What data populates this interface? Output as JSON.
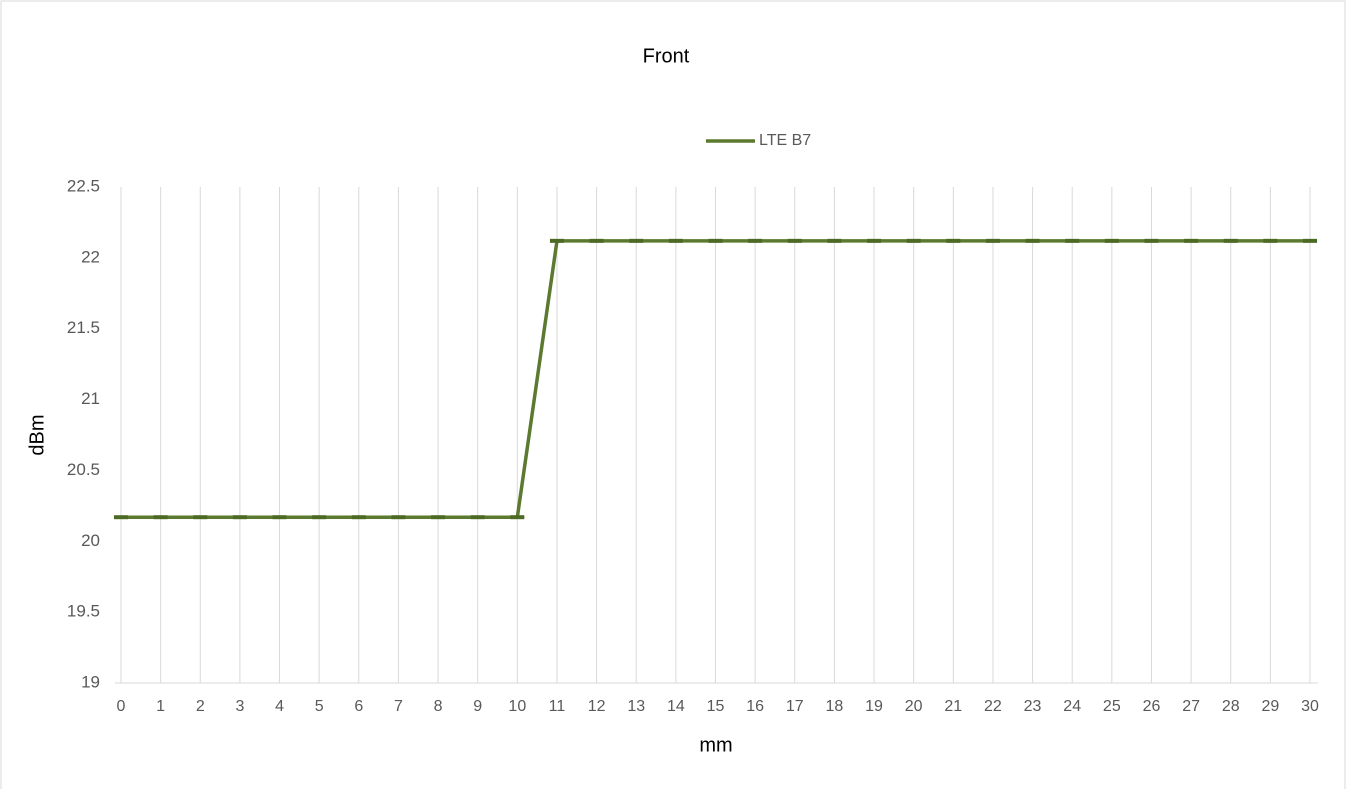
{
  "chart_data": {
    "type": "line",
    "title": "Front",
    "x_label": "mm",
    "y_label": "dBm",
    "categories": [
      0,
      1,
      2,
      3,
      4,
      5,
      6,
      7,
      8,
      9,
      10,
      11,
      12,
      13,
      14,
      15,
      16,
      17,
      18,
      19,
      20,
      21,
      22,
      23,
      24,
      25,
      26,
      27,
      28,
      29,
      30
    ],
    "series": [
      {
        "name": "LTE B7",
        "color": "#5b7a2f",
        "values": [
          20.17,
          20.17,
          20.17,
          20.17,
          20.17,
          20.17,
          20.17,
          20.17,
          20.17,
          20.17,
          20.17,
          22.12,
          22.12,
          22.12,
          22.12,
          22.12,
          22.12,
          22.12,
          22.12,
          22.12,
          22.12,
          22.12,
          22.12,
          22.12,
          22.12,
          22.12,
          22.12,
          22.12,
          22.12,
          22.12,
          22.12
        ]
      }
    ],
    "ylim": [
      19,
      22.5
    ],
    "yticks": [
      19,
      19.5,
      20,
      20.5,
      21,
      21.5,
      22,
      22.5
    ],
    "grid": "x",
    "legend": "top"
  }
}
